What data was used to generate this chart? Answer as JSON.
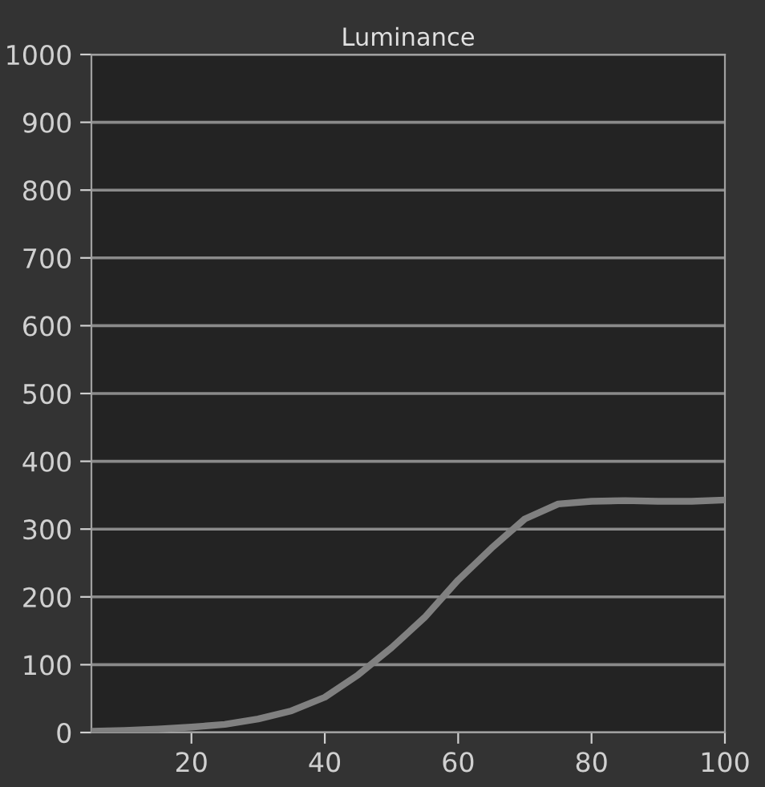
{
  "chart_data": {
    "type": "line",
    "title": "Luminance",
    "x": [
      5,
      10,
      15,
      20,
      25,
      30,
      35,
      40,
      45,
      50,
      55,
      60,
      65,
      70,
      75,
      80,
      85,
      90,
      95,
      100
    ],
    "series": [
      {
        "color": "#808080",
        "values": [
          2,
          3,
          5,
          8,
          12,
          20,
          32,
          52,
          85,
          125,
          170,
          225,
          272,
          315,
          337,
          341,
          342,
          341,
          341,
          343
        ]
      }
    ],
    "xlim": [
      5,
      100
    ],
    "xticks": [
      20,
      40,
      60,
      80,
      100
    ],
    "ylim": [
      0,
      1000
    ],
    "yticks": [
      0,
      100,
      200,
      300,
      400,
      500,
      600,
      700,
      800,
      900,
      1000
    ],
    "grid": "y",
    "marker": "none",
    "line_style": "solid"
  }
}
